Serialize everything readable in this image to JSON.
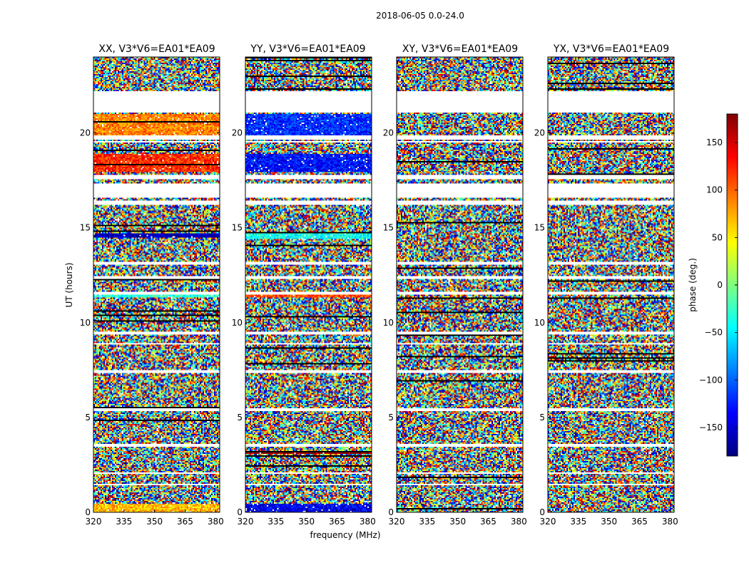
{
  "chart_data": {
    "type": "heatmap",
    "title": "2018-06-05 0.0-24.0",
    "xlabel": "frequency (MHz)",
    "ylabel": "UT (hours)",
    "xlim": [
      320,
      382
    ],
    "ylim": [
      0,
      24
    ],
    "xticks": [
      320,
      335,
      350,
      365,
      380
    ],
    "yticks": [
      0,
      5,
      10,
      15,
      20
    ],
    "panels": [
      {
        "title": "XX, V3*V6=EA01*EA09",
        "products": "XX"
      },
      {
        "title": "YY, V3*V6=EA01*EA09",
        "products": "YY"
      },
      {
        "title": "XY, V3*V6=EA01*EA09",
        "products": "XY"
      },
      {
        "title": "YX, V3*V6=EA01*EA09",
        "products": "YX"
      }
    ],
    "colorbar": {
      "label": "phase (deg.)",
      "colormap": "jet",
      "range": [
        -180,
        180
      ],
      "ticks": [
        150,
        100,
        50,
        0,
        -50,
        -100,
        -150
      ]
    },
    "flagged_gaps_hours": [
      [
        21.1,
        22.2
      ],
      [
        19.5,
        19.55
      ],
      [
        19.65,
        19.9
      ],
      [
        16.6,
        17.3
      ],
      [
        17.55,
        17.8
      ],
      [
        16.2,
        16.45
      ],
      [
        13.05,
        13.2
      ],
      [
        12.3,
        12.45
      ],
      [
        11.45,
        11.6
      ],
      [
        9.35,
        9.5
      ],
      [
        8.85,
        8.95
      ],
      [
        7.35,
        7.5
      ],
      [
        5.3,
        5.45
      ],
      [
        3.45,
        3.6
      ],
      [
        1.4,
        1.5
      ],
      [
        2.0,
        2.1
      ]
    ],
    "special_bands_hours": {
      "XX": [
        {
          "range": [
            0.0,
            0.45
          ],
          "phase": 70
        },
        {
          "range": [
            19.9,
            21.0
          ],
          "phase": 90
        },
        {
          "range": [
            17.9,
            18.9
          ],
          "phase": 120
        },
        {
          "range": [
            14.5,
            14.7
          ],
          "phase": -160
        },
        {
          "range": [
            11.3,
            11.45
          ],
          "phase": -30
        }
      ],
      "YY": [
        {
          "range": [
            0.0,
            0.45
          ],
          "phase": -140
        },
        {
          "range": [
            19.9,
            21.0
          ],
          "phase": -120
        },
        {
          "range": [
            17.9,
            18.9
          ],
          "phase": -130
        },
        {
          "range": [
            14.4,
            14.8
          ],
          "phase": -40
        },
        {
          "range": [
            11.3,
            11.45
          ],
          "phase": 110
        },
        {
          "range": [
            3.1,
            3.2
          ],
          "phase": 170
        }
      ],
      "XY": [],
      "YX": []
    }
  }
}
